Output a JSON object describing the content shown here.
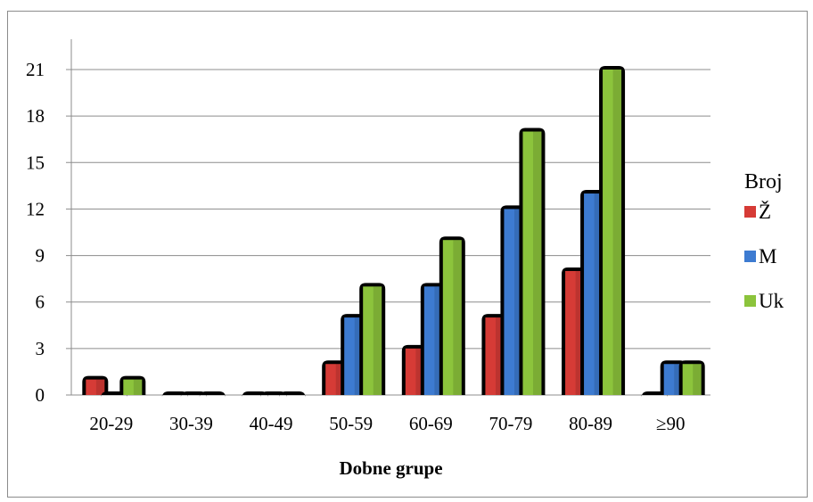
{
  "chart_data": {
    "type": "bar",
    "categories": [
      "20-29",
      "30-39",
      "40-49",
      "50-59",
      "60-69",
      "70-79",
      "80-89",
      "≥90"
    ],
    "series": [
      {
        "name": "Ž",
        "values": [
          1,
          0,
          0,
          2,
          3,
          5,
          8,
          0
        ],
        "color": "#d63b36"
      },
      {
        "name": "M",
        "values": [
          0,
          0,
          0,
          5,
          7,
          12,
          13,
          2
        ],
        "color": "#3d7bd1"
      },
      {
        "name": "Uk",
        "values": [
          1,
          0,
          0,
          7,
          10,
          17,
          21,
          2
        ],
        "color": "#8cc43c"
      }
    ],
    "legend_title": "Broj",
    "legend_position": "right",
    "xlabel": "Dobne grupe",
    "ylabel": "",
    "title": "",
    "ylim": [
      0,
      21
    ],
    "yticks": [
      0,
      3,
      6,
      9,
      12,
      15,
      18,
      21
    ],
    "grid": true
  }
}
